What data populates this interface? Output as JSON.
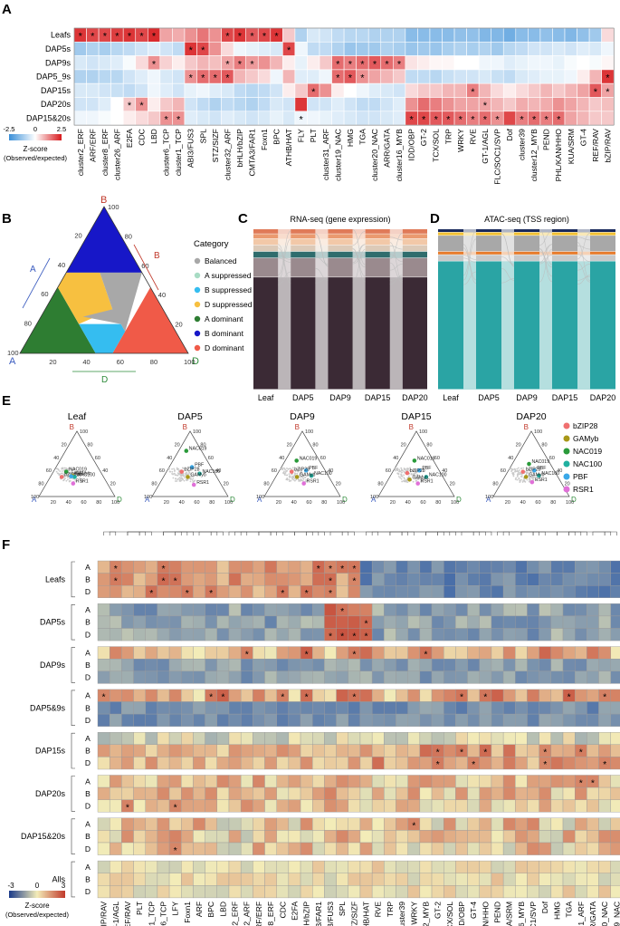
{
  "colors": {
    "blue": "#2166ac",
    "white": "#ffffff",
    "red": "#d7191c",
    "teal": "#2b9a9a",
    "green_dom": "#3a8a3a",
    "label_A": "#3a5bbf",
    "label_B": "#c0392b",
    "label_D": "#2e8b3a"
  },
  "panel_letters": [
    "A",
    "B",
    "C",
    "D",
    "E",
    "F"
  ],
  "chart_data": [
    {
      "panel": "A",
      "type": "heatmap",
      "rows": [
        "Leafs",
        "DAP5s",
        "DAP9s",
        "DAP5_9s",
        "DAP15s",
        "DAP20s",
        "DAP15&20s"
      ],
      "columns": [
        "cluster2_ERF",
        "ARF/ERF",
        "cluster8_ERF",
        "cluster26_ARF",
        "E2FA",
        "CDC",
        "LBD",
        "cluster6_TCP",
        "cluster1_TCP",
        "ABI3/FUS3",
        "SPL",
        "STZ/SIZF",
        "cluster32_ARF",
        "bHLH/bZIP",
        "CMTA3/FAR1",
        "Foxn1",
        "BPC",
        "ATHB/HAT",
        "FLY",
        "PLT",
        "cluster31_ARF",
        "cluster19_NAC",
        "HMG",
        "TGA",
        "cluster20_NAC",
        "ARR/GATA",
        "cluster16_MYB",
        "IDD/OBP",
        "GT-2",
        "TCX/SOL",
        "TRP",
        "WRKY",
        "RVE",
        "GT-1/AGL",
        "FLC/SOC1/SVP",
        "Dof",
        "cluster39",
        "cluster12_MYB",
        "PEND",
        "PHL/KAN/HHO",
        "KUA/SRM",
        "GT-4",
        "REF/RAV",
        "bZIP/RAV"
      ],
      "values": [
        [
          2.2,
          2.0,
          2.0,
          2.1,
          2.2,
          2.0,
          2.3,
          1.0,
          0.9,
          1.2,
          1.5,
          1.2,
          2.0,
          2.2,
          1.8,
          2.0,
          2.2,
          0.6,
          -1.0,
          -0.5,
          -0.6,
          -0.8,
          -0.9,
          -0.9,
          -1.0,
          -1.0,
          -1.0,
          -1.5,
          -1.5,
          -1.5,
          -1.5,
          -1.4,
          -1.4,
          -1.6,
          -1.6,
          -1.8,
          -1.5,
          -1.5,
          -1.4,
          -1.5,
          -1.6,
          -1.4,
          -1.2,
          0.4
        ],
        [
          -1.2,
          -1.0,
          -1.1,
          -0.9,
          -0.8,
          -0.6,
          -0.4,
          -0.6,
          -0.8,
          2.2,
          2.0,
          1.2,
          0.4,
          -0.2,
          -0.3,
          -0.4,
          -0.5,
          2.0,
          -0.2,
          -0.8,
          -0.8,
          -1.0,
          -1.3,
          -1.2,
          -1.2,
          -1.0,
          -1.1,
          -1.3,
          -1.2,
          -1.3,
          -1.1,
          -1.0,
          -1.1,
          -1.0,
          -1.2,
          -0.9,
          -0.8,
          -0.6,
          -0.6,
          -0.5,
          -0.6,
          -0.4,
          -0.5,
          -0.2
        ],
        [
          -0.5,
          -0.6,
          -0.5,
          -0.4,
          -0.1,
          0.4,
          1.2,
          0.5,
          0.2,
          0.6,
          0.8,
          0.7,
          1.0,
          1.4,
          1.1,
          1.2,
          0.8,
          0.2,
          -0.3,
          0.2,
          0.6,
          1.6,
          1.4,
          1.6,
          1.8,
          1.6,
          1.4,
          0.3,
          0.2,
          0.1,
          0.1,
          0.0,
          0.0,
          -0.2,
          -0.2,
          -0.4,
          -0.3,
          -0.2,
          -0.2,
          -0.3,
          -0.1,
          0.0,
          -0.1,
          0.1
        ],
        [
          -1.0,
          -1.0,
          -0.9,
          -0.9,
          -0.6,
          -0.4,
          -0.2,
          -0.5,
          -0.6,
          1.2,
          1.6,
          1.6,
          1.8,
          0.8,
          0.6,
          0.4,
          -0.2,
          0.8,
          -0.4,
          -0.4,
          -0.2,
          1.6,
          1.8,
          1.2,
          1.0,
          0.8,
          0.6,
          -0.8,
          -0.8,
          -0.9,
          -0.7,
          -0.6,
          -0.6,
          -0.5,
          -0.7,
          -0.8,
          -0.5,
          -0.4,
          -0.3,
          -0.3,
          -0.2,
          0.2,
          0.8,
          2.2
        ],
        [
          -0.5,
          -0.5,
          -0.6,
          -0.7,
          -0.8,
          -0.6,
          -0.2,
          -0.4,
          -0.6,
          -0.3,
          -0.2,
          -0.4,
          -0.5,
          -0.8,
          -0.9,
          -0.8,
          -0.6,
          0.2,
          0.6,
          1.6,
          1.2,
          0.2,
          0.0,
          -0.2,
          -0.4,
          -0.5,
          -0.6,
          0.4,
          0.6,
          0.6,
          0.8,
          0.8,
          1.4,
          0.8,
          0.4,
          0.2,
          0.4,
          0.6,
          0.8,
          0.6,
          0.8,
          1.0,
          1.8,
          1.0
        ],
        [
          -0.6,
          -0.6,
          -0.4,
          0.0,
          0.6,
          1.2,
          0.2,
          0.6,
          0.8,
          -0.6,
          -0.8,
          -1.0,
          -0.8,
          -0.9,
          -1.0,
          -0.8,
          -0.5,
          -0.6,
          2.2,
          -0.6,
          -0.6,
          -0.4,
          -0.6,
          -0.8,
          -0.8,
          -0.6,
          -0.4,
          1.2,
          1.6,
          1.4,
          1.2,
          1.0,
          1.0,
          1.0,
          0.8,
          0.6,
          0.9,
          0.8,
          0.9,
          1.2,
          1.0,
          0.8,
          0.6,
          0.7
        ],
        [
          -0.2,
          -0.2,
          -0.1,
          0.0,
          0.2,
          0.4,
          0.6,
          1.2,
          1.2,
          -0.4,
          -0.5,
          -0.6,
          -0.4,
          -0.5,
          -0.6,
          -0.5,
          -0.3,
          -0.5,
          -0.2,
          -0.2,
          -0.3,
          -0.4,
          -0.5,
          -0.6,
          -0.6,
          -0.5,
          -0.4,
          2.0,
          2.0,
          1.8,
          1.8,
          1.6,
          1.4,
          1.6,
          1.2,
          2.0,
          1.4,
          1.6,
          1.4,
          1.6,
          1.0,
          0.8,
          0.6,
          0.6
        ]
      ],
      "stars": [
        [
          1,
          1,
          1,
          1,
          1,
          1,
          1,
          0,
          0,
          0,
          0,
          0,
          1,
          1,
          1,
          1,
          1,
          0,
          0,
          0,
          0,
          0,
          0,
          0,
          0,
          0,
          0,
          0,
          0,
          0,
          0,
          0,
          0,
          0,
          0,
          0,
          0,
          0,
          0,
          0,
          0,
          0,
          0,
          0
        ],
        [
          0,
          0,
          0,
          0,
          0,
          0,
          0,
          0,
          0,
          1,
          1,
          0,
          0,
          0,
          0,
          0,
          0,
          1,
          0,
          0,
          0,
          0,
          0,
          0,
          0,
          0,
          0,
          0,
          0,
          0,
          0,
          0,
          0,
          0,
          0,
          0,
          0,
          0,
          0,
          0,
          0,
          0,
          0,
          0
        ],
        [
          0,
          0,
          0,
          0,
          0,
          0,
          1,
          0,
          0,
          0,
          0,
          0,
          1,
          1,
          1,
          0,
          0,
          0,
          0,
          0,
          0,
          1,
          1,
          1,
          1,
          1,
          1,
          0,
          0,
          0,
          0,
          0,
          0,
          0,
          0,
          0,
          0,
          0,
          0,
          0,
          0,
          0,
          0,
          0
        ],
        [
          0,
          0,
          0,
          0,
          0,
          0,
          0,
          0,
          0,
          1,
          1,
          1,
          1,
          0,
          0,
          0,
          0,
          0,
          0,
          0,
          0,
          1,
          1,
          1,
          0,
          0,
          0,
          0,
          0,
          0,
          0,
          0,
          0,
          0,
          0,
          0,
          0,
          0,
          0,
          0,
          0,
          0,
          0,
          1
        ],
        [
          0,
          0,
          0,
          0,
          0,
          0,
          0,
          0,
          0,
          0,
          0,
          0,
          0,
          0,
          0,
          0,
          0,
          0,
          0,
          1,
          0,
          0,
          0,
          0,
          0,
          0,
          0,
          0,
          0,
          0,
          0,
          0,
          1,
          0,
          0,
          0,
          0,
          0,
          0,
          0,
          0,
          0,
          1,
          1
        ],
        [
          0,
          0,
          0,
          0,
          1,
          1,
          0,
          0,
          0,
          0,
          0,
          0,
          0,
          0,
          0,
          0,
          0,
          0,
          0,
          0,
          0,
          0,
          0,
          0,
          0,
          0,
          0,
          0,
          0,
          0,
          0,
          0,
          0,
          1,
          0,
          0,
          0,
          0,
          0,
          0,
          0,
          0,
          0,
          0
        ],
        [
          0,
          0,
          0,
          0,
          0,
          0,
          0,
          1,
          1,
          0,
          0,
          0,
          0,
          0,
          0,
          0,
          0,
          0,
          1,
          0,
          0,
          0,
          0,
          0,
          0,
          0,
          0,
          1,
          1,
          1,
          1,
          1,
          1,
          1,
          1,
          0,
          1,
          1,
          1,
          1,
          0,
          0,
          0,
          0
        ]
      ],
      "legend": {
        "title": "Z-score",
        "subtitle": "(Observed/expected)",
        "min": -2.5,
        "mid": 0,
        "max": 2.5,
        "min_label": "-2.5",
        "mid_label": "0",
        "max_label": "2.5"
      }
    },
    {
      "panel": "B",
      "type": "ternary",
      "axes": {
        "B": "B",
        "A": "A",
        "D": "D"
      },
      "ticks": [
        "20",
        "40",
        "60",
        "80",
        "100"
      ],
      "legend_title": "Category",
      "categories": [
        {
          "name": "Balanced",
          "color": "#a8a8a8"
        },
        {
          "name": "A suppressed",
          "color": "#a8dcc4"
        },
        {
          "name": "B suppressed",
          "color": "#35bdf0"
        },
        {
          "name": "D suppressed",
          "color": "#f7c040"
        },
        {
          "name": "A dominant",
          "color": "#2e7d32"
        },
        {
          "name": "B dominant",
          "color": "#1717c8"
        },
        {
          "name": "D dominant",
          "color": "#f05a48"
        }
      ]
    },
    {
      "panel": "C",
      "type": "alluvial",
      "title": "RNA-seq (gene expression)",
      "stages": [
        "Leaf",
        "DAP5",
        "DAP9",
        "DAP15",
        "DAP20"
      ],
      "segments": [
        {
          "share": 0.03,
          "color": "#e07a58"
        },
        {
          "share": 0.03,
          "color": "#ea9a70"
        },
        {
          "share": 0.04,
          "color": "#f2c8a8"
        },
        {
          "share": 0.04,
          "color": "#dccab8"
        },
        {
          "share": 0.04,
          "color": "#2f6d6d"
        },
        {
          "share": 0.12,
          "color": "#9a8a8e"
        },
        {
          "share": 0.7,
          "color": "#3b2a35"
        }
      ]
    },
    {
      "panel": "D",
      "type": "alluvial",
      "title": "ATAC-seq (TSS region)",
      "stages": [
        "Leaf",
        "DAP5",
        "DAP9",
        "DAP15",
        "DAP20"
      ],
      "segments": [
        {
          "share": 0.02,
          "color": "#1a2a5c"
        },
        {
          "share": 0.02,
          "color": "#f2c030"
        },
        {
          "share": 0.1,
          "color": "#a8a8a8"
        },
        {
          "share": 0.02,
          "color": "#e77a2a"
        },
        {
          "share": 0.04,
          "color": "#c8c8c8"
        },
        {
          "share": 0.8,
          "color": "#2aa4a4"
        }
      ]
    },
    {
      "panel": "E",
      "type": "ternary-small",
      "facets": [
        "Leaf",
        "DAP5",
        "DAP9",
        "DAP15",
        "DAP20"
      ],
      "axes": {
        "B": "B",
        "A": "A",
        "D": "D"
      },
      "ticks": [
        "20",
        "40",
        "60",
        "80",
        "100"
      ],
      "legend": [
        {
          "name": "bZIP28",
          "color": "#f07070"
        },
        {
          "name": "GAMyb",
          "color": "#a89818"
        },
        {
          "name": "NAC019",
          "color": "#2a9a3a"
        },
        {
          "name": "NAC100",
          "color": "#20b0a0"
        },
        {
          "name": "PBF",
          "color": "#3aa8e8"
        },
        {
          "name": "RSR1",
          "color": "#e070d8"
        }
      ],
      "points": [
        [
          {
            "n": "NAC019",
            "a": 0.45,
            "b": 0.38,
            "d": 0.17
          },
          {
            "n": "bZIP28",
            "a": 0.55,
            "b": 0.3,
            "d": 0.15
          },
          {
            "n": "GAMyb",
            "a": 0.4,
            "b": 0.32,
            "d": 0.28
          },
          {
            "n": "NAC100",
            "a": 0.38,
            "b": 0.3,
            "d": 0.32
          },
          {
            "n": "PBF",
            "a": 0.42,
            "b": 0.31,
            "d": 0.27
          },
          {
            "n": "RSR1",
            "a": 0.45,
            "b": 0.2,
            "d": 0.35
          }
        ],
        [
          {
            "n": "NAC019",
            "a": 0.2,
            "b": 0.7,
            "d": 0.1
          },
          {
            "n": "PBF",
            "a": 0.25,
            "b": 0.45,
            "d": 0.3
          },
          {
            "n": "bZIP28",
            "a": 0.42,
            "b": 0.38,
            "d": 0.2
          },
          {
            "n": "NAC100",
            "a": 0.2,
            "b": 0.35,
            "d": 0.45
          },
          {
            "n": "GAMyb",
            "a": 0.38,
            "b": 0.3,
            "d": 0.32
          },
          {
            "n": "RSR1",
            "a": 0.36,
            "b": 0.18,
            "d": 0.46
          }
        ],
        [
          {
            "n": "NAC019",
            "a": 0.3,
            "b": 0.55,
            "d": 0.15
          },
          {
            "n": "PBF",
            "a": 0.25,
            "b": 0.4,
            "d": 0.35
          },
          {
            "n": "bZIP28",
            "a": 0.45,
            "b": 0.38,
            "d": 0.17
          },
          {
            "n": "NAC100",
            "a": 0.22,
            "b": 0.32,
            "d": 0.46
          },
          {
            "n": "GAMyb",
            "a": 0.42,
            "b": 0.3,
            "d": 0.28
          },
          {
            "n": "RSR1",
            "a": 0.38,
            "b": 0.2,
            "d": 0.42
          }
        ],
        [
          {
            "n": "NAC019",
            "a": 0.25,
            "b": 0.55,
            "d": 0.2
          },
          {
            "n": "PBF",
            "a": 0.26,
            "b": 0.4,
            "d": 0.34
          },
          {
            "n": "bZIP28",
            "a": 0.44,
            "b": 0.36,
            "d": 0.2
          },
          {
            "n": "NAC100",
            "a": 0.22,
            "b": 0.3,
            "d": 0.48
          },
          {
            "n": "GAMyb",
            "a": 0.46,
            "b": 0.26,
            "d": 0.28
          },
          {
            "n": "RSR1",
            "a": 0.38,
            "b": 0.2,
            "d": 0.42
          }
        ],
        [
          {
            "n": "NAC019",
            "a": 0.28,
            "b": 0.5,
            "d": 0.22
          },
          {
            "n": "PBF",
            "a": 0.26,
            "b": 0.4,
            "d": 0.34
          },
          {
            "n": "bZIP28",
            "a": 0.42,
            "b": 0.38,
            "d": 0.2
          },
          {
            "n": "NAC100",
            "a": 0.24,
            "b": 0.32,
            "d": 0.44
          },
          {
            "n": "GAMyb",
            "a": 0.42,
            "b": 0.3,
            "d": 0.28
          },
          {
            "n": "RSR1",
            "a": 0.38,
            "b": 0.22,
            "d": 0.4
          }
        ]
      ]
    },
    {
      "panel": "F",
      "type": "heatmap",
      "row_groups": [
        "Leafs",
        "DAP5s",
        "DAP9s",
        "DAP5&9s",
        "DAP15s",
        "DAP20s",
        "DAP15&20s",
        "Alls"
      ],
      "subgenomes": [
        "A",
        "B",
        "D"
      ],
      "columns": [
        "bZIP/RAV",
        "GT-1/AGL",
        "REF/RAV",
        "PLT",
        "cluster1_TCP",
        "cluster6_TCP",
        "LFY",
        "Foxn1",
        "ARF",
        "BPC",
        "LBD",
        "cluster2_ERF",
        "cluster32_ARF",
        "ARF/ERF",
        "cluster8_ERF",
        "CDC",
        "E2FA",
        "bHLH/bZIP",
        "CMTA3/FAR1",
        "ABI3/FUS3",
        "SPL",
        "STZ/SIZF",
        "ATHB/HAT",
        "RVE",
        "TRP",
        "cluster39",
        "WRKY",
        "cluster12_MYB",
        "GT-2",
        "TCX/SOL",
        "IDD/OBP",
        "GT-4",
        "PHL/KAN/HHO",
        "PEND",
        "KUA/SRM",
        "cluster16_MYB",
        "FLC/SOC1/SVP",
        "Dof",
        "HMG",
        "TGA",
        "cluster31_ARF",
        "ARR/GATA",
        "cluster20_NAC",
        "cluster19_NAC"
      ],
      "legend": {
        "title": "Z-score",
        "subtitle": "(Observed/expected)",
        "min": -3,
        "mid": 0,
        "max": 3,
        "min_label": "-3",
        "mid_label": "0",
        "max_label": "3"
      }
    }
  ]
}
